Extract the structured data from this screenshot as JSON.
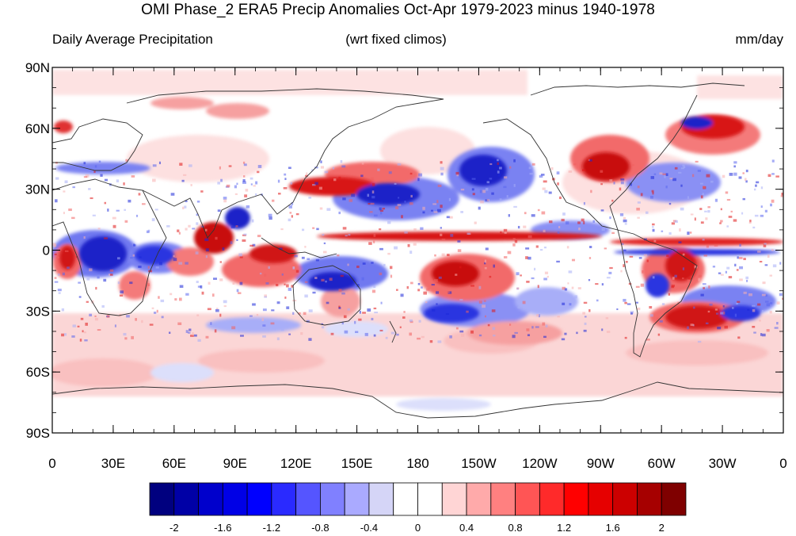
{
  "title": "OMI Phase_2 ERA5 Precip Anomalies Oct-Apr 1979-2023 minus 1940-1978",
  "subtitle_left": "Daily Average Precipitation",
  "subtitle_center": "(wrt fixed climos)",
  "subtitle_right": "mm/day",
  "lat_labels": [
    "90N",
    "60N",
    "30N",
    "0",
    "30S",
    "60S",
    "90S"
  ],
  "lon_labels": [
    "0",
    "30E",
    "60E",
    "90E",
    "120E",
    "150E",
    "180",
    "150W",
    "120W",
    "90W",
    "60W",
    "30W",
    "0"
  ],
  "colorbar": {
    "colors": [
      "#00007f",
      "#0000a6",
      "#0000cc",
      "#0000e6",
      "#0000ff",
      "#2a2aff",
      "#5555ff",
      "#8080ff",
      "#aaaaff",
      "#d5d5f7",
      "#ffffff",
      "#ffffff",
      "#ffd5d5",
      "#ffaaaa",
      "#ff8080",
      "#ff5555",
      "#ff2a2a",
      "#ff0000",
      "#e60000",
      "#cc0000",
      "#a60000",
      "#7f0000"
    ],
    "labels": [
      "-2",
      "-1.6",
      "-1.2",
      "-0.8",
      "-0.4",
      "0",
      "0.4",
      "0.8",
      "1.2",
      "1.6",
      "2"
    ]
  },
  "map_colors": {
    "strong_red": "#e01818",
    "medium_red": "#f06060",
    "light_red": "#f8b0b0",
    "pale_red": "#fde0e0",
    "strong_blue": "#1c28d8",
    "medium_blue": "#5a66ee",
    "light_blue": "#a8aef8",
    "pale_blue": "#dcdffb",
    "coast": "#333333"
  }
}
